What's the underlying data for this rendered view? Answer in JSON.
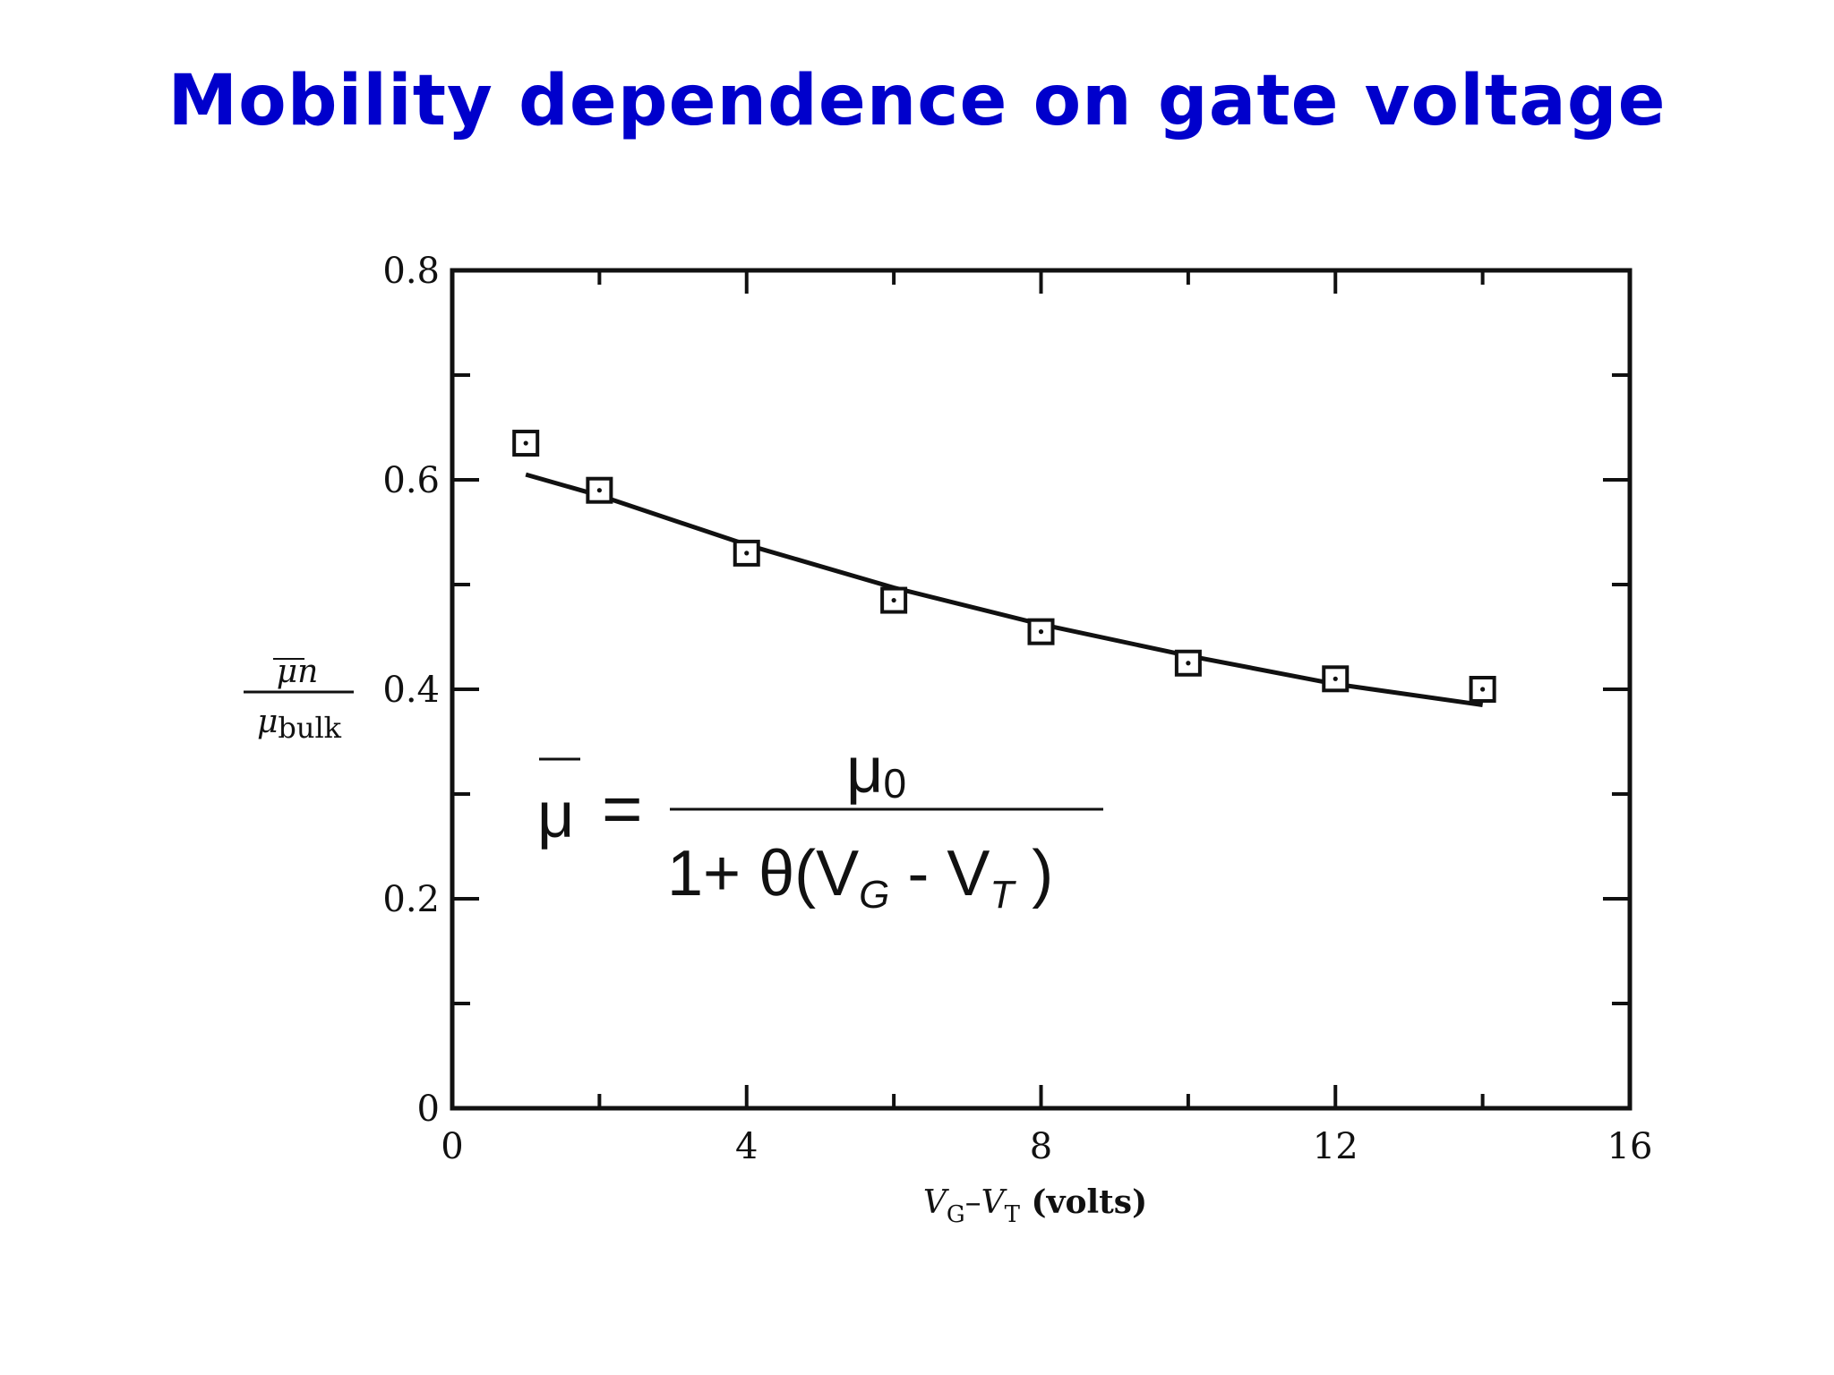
{
  "title": "Mobility dependence on gate voltage",
  "chart_data": {
    "type": "scatter",
    "title": "Mobility dependence on gate voltage",
    "xlabel_main_1": "V",
    "xlabel_sub_1": "G",
    "xlabel_dash": "–",
    "xlabel_main_2": "V",
    "xlabel_sub_2": "T",
    "xlabel_unit": " (volts)",
    "ylabel_num": "μn",
    "ylabel_den_main": "μ",
    "ylabel_den_sub": "bulk",
    "xlim": [
      0,
      16
    ],
    "ylim": [
      0,
      0.8
    ],
    "x_ticks": [
      0,
      4,
      8,
      12,
      16
    ],
    "x_tick_labels": [
      "0",
      "4",
      "8",
      "12",
      "16"
    ],
    "y_ticks": [
      0,
      0.2,
      0.4,
      0.6,
      0.8
    ],
    "y_tick_labels": [
      "0",
      "0.2",
      "0.4",
      "0.6",
      "0.8"
    ],
    "series": [
      {
        "marker": "square",
        "x": [
          1,
          2,
          4,
          6,
          8,
          10,
          12,
          14
        ],
        "y": [
          0.635,
          0.59,
          0.53,
          0.485,
          0.455,
          0.425,
          0.41,
          0.4
        ]
      },
      {
        "line": "solid",
        "x": [
          1,
          2,
          4,
          6,
          8,
          10,
          12,
          14
        ],
        "y": [
          0.605,
          0.585,
          0.538,
          0.497,
          0.462,
          0.432,
          0.405,
          0.385
        ]
      }
    ],
    "grid": false,
    "legend": "none"
  },
  "formula": {
    "lhs": "μ",
    "equals": "=",
    "numerator": "μ",
    "numerator_sub": "0",
    "denominator_start": "1+ θ(V",
    "denominator_sub1": "G",
    "denominator_mid": " - V",
    "denominator_sub2": "T",
    "denominator_end": " )"
  }
}
